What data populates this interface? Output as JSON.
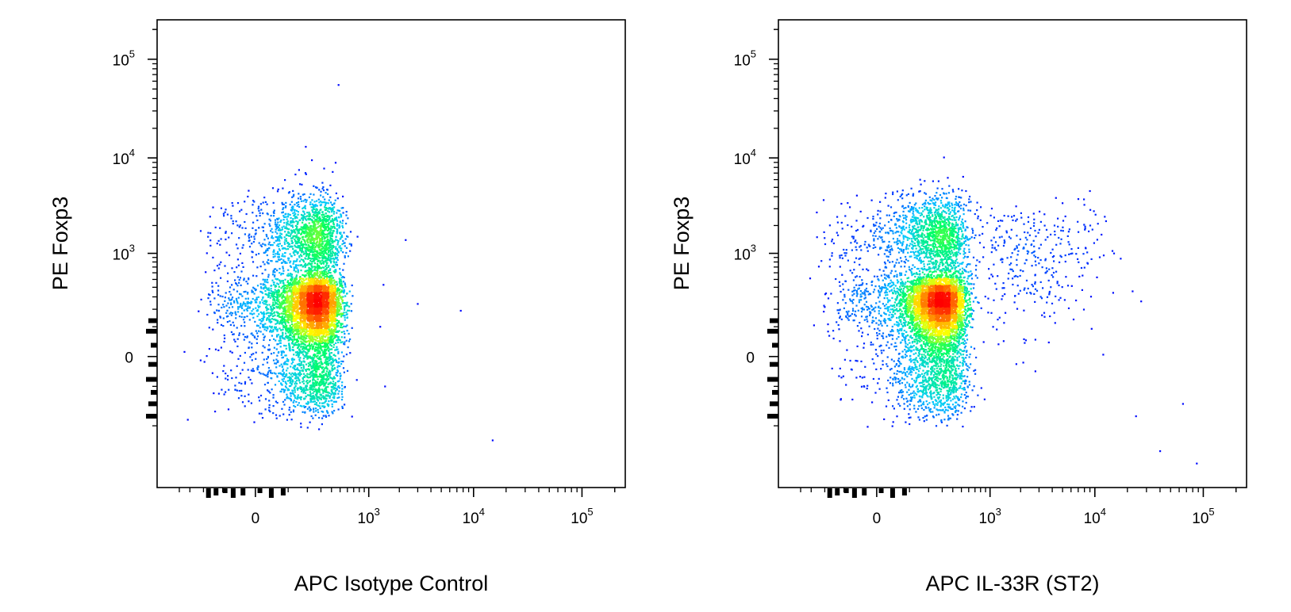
{
  "chart_data": [
    {
      "type": "scatter",
      "title": "",
      "xlabel": "APC  Isotype Control",
      "ylabel": "PE Foxp3",
      "xscale": "biexponential",
      "yscale": "biexponential",
      "xlim": [
        -700,
        250000
      ],
      "ylim": [
        -2000,
        250000
      ],
      "x_ticks": [
        {
          "value": 0,
          "base": "0",
          "exp": ""
        },
        {
          "value": 1000,
          "base": "10",
          "exp": "3"
        },
        {
          "value": 10000,
          "base": "10",
          "exp": "4"
        },
        {
          "value": 100000,
          "base": "10",
          "exp": "5"
        }
      ],
      "y_ticks": [
        {
          "value": 0,
          "base": "0",
          "exp": ""
        },
        {
          "value": 1000,
          "base": "10",
          "exp": "3"
        },
        {
          "value": 10000,
          "base": "10",
          "exp": "4"
        },
        {
          "value": 100000,
          "base": "10",
          "exp": "5"
        }
      ],
      "colormap": [
        "#0000ff",
        "#00c8ff",
        "#00ff64",
        "#ffff00",
        "#ff8000",
        "#ff0000"
      ],
      "populations": [
        {
          "x_center": 230,
          "y_center": 170,
          "x_spread": 140,
          "y_spread": 180,
          "count": 5200
        },
        {
          "x_center": 220,
          "y_center": 1500,
          "x_spread": 150,
          "y_spread": 0.22,
          "count": 1600
        }
      ],
      "outliers": [
        [
          480,
          55000
        ],
        [
          190,
          13000
        ],
        [
          230,
          9500
        ],
        [
          2300,
          1400
        ],
        [
          1400,
          430
        ],
        [
          3000,
          240
        ],
        [
          7600,
          190
        ],
        [
          1300,
          100
        ],
        [
          1450,
          -100
        ],
        [
          15000,
          -600
        ]
      ],
      "grid": false,
      "legend": "none"
    },
    {
      "type": "scatter",
      "title": "",
      "xlabel": "APC  IL-33R (ST2)",
      "ylabel": "PE Foxp3",
      "xscale": "biexponential",
      "yscale": "biexponential",
      "xlim": [
        -700,
        250000
      ],
      "ylim": [
        -2000,
        250000
      ],
      "x_ticks": [
        {
          "value": 0,
          "base": "0",
          "exp": ""
        },
        {
          "value": 1000,
          "base": "10",
          "exp": "3"
        },
        {
          "value": 10000,
          "base": "10",
          "exp": "4"
        },
        {
          "value": 100000,
          "base": "10",
          "exp": "5"
        }
      ],
      "y_ticks": [
        {
          "value": 0,
          "base": "0",
          "exp": ""
        },
        {
          "value": 1000,
          "base": "10",
          "exp": "3"
        },
        {
          "value": 10000,
          "base": "10",
          "exp": "4"
        },
        {
          "value": 100000,
          "base": "10",
          "exp": "5"
        }
      ],
      "colormap": [
        "#0000ff",
        "#00c8ff",
        "#00ff64",
        "#ffff00",
        "#ff8000",
        "#ff0000"
      ],
      "populations": [
        {
          "x_center": 250,
          "y_center": 170,
          "x_spread": 150,
          "y_spread": 180,
          "count": 5200
        },
        {
          "x_center": 230,
          "y_center": 1500,
          "x_spread": 160,
          "y_spread": 0.22,
          "count": 1500
        },
        {
          "x_center": 2500,
          "y_center": 1200,
          "x_spread": 0.35,
          "y_spread": 0.25,
          "count": 260
        },
        {
          "x_center": 2200,
          "y_center": 250,
          "x_spread": 0.35,
          "y_spread": 150,
          "count": 90
        }
      ],
      "outliers": [
        [
          150,
          6000
        ],
        [
          11500,
          1600
        ],
        [
          24000,
          -300
        ],
        [
          65000,
          -200
        ],
        [
          40000,
          -800
        ],
        [
          87000,
          -1100
        ]
      ],
      "grid": false,
      "legend": "none"
    }
  ]
}
